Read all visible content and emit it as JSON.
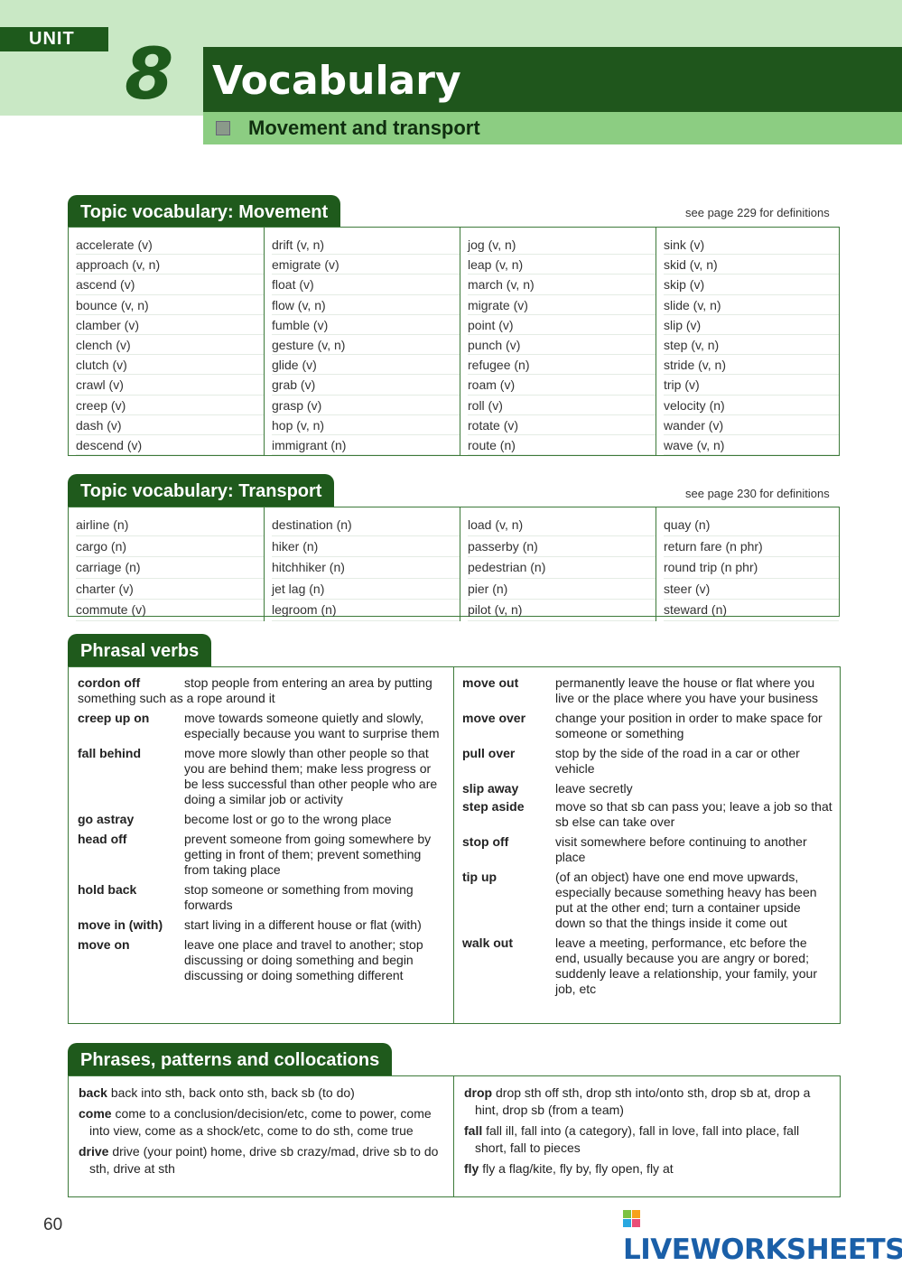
{
  "header": {
    "unit_label": "UNIT",
    "unit_number": "8",
    "title": "Vocabulary",
    "subtitle": "Movement and transport"
  },
  "movement": {
    "title": "Topic vocabulary: Movement",
    "note": "see page 229 for definitions",
    "columns": [
      [
        "accelerate (v)",
        "approach (v, n)",
        "ascend (v)",
        "bounce (v, n)",
        "clamber (v)",
        "clench (v)",
        "clutch (v)",
        "crawl (v)",
        "creep (v)",
        "dash (v)",
        "descend (v)"
      ],
      [
        "drift (v, n)",
        "emigrate (v)",
        "float (v)",
        "flow (v, n)",
        "fumble (v)",
        "gesture (v, n)",
        "glide (v)",
        "grab (v)",
        "grasp (v)",
        "hop (v, n)",
        "immigrant (n)"
      ],
      [
        "jog (v, n)",
        "leap (v, n)",
        "march (v, n)",
        "migrate (v)",
        "point (v)",
        "punch (v)",
        "refugee (n)",
        "roam (v)",
        "roll (v)",
        "rotate (v)",
        "route (n)"
      ],
      [
        "sink (v)",
        "skid (v, n)",
        "skip (v)",
        "slide (v, n)",
        "slip (v)",
        "step (v, n)",
        "stride (v, n)",
        "trip (v)",
        "velocity (n)",
        "wander (v)",
        "wave (v, n)"
      ]
    ]
  },
  "transport": {
    "title": "Topic vocabulary: Transport",
    "note": "see page 230 for definitions",
    "columns": [
      [
        "airline (n)",
        "cargo (n)",
        "carriage (n)",
        "charter (v)",
        "commute (v)"
      ],
      [
        "destination (n)",
        "hiker (n)",
        "hitchhiker (n)",
        "jet lag (n)",
        "legroom (n)"
      ],
      [
        "load (v, n)",
        "passerby (n)",
        "pedestrian (n)",
        "pier (n)",
        "pilot (v, n)"
      ],
      [
        "quay (n)",
        "return fare (n phr)",
        "round trip (n phr)",
        "steer (v)",
        "steward (n)"
      ]
    ]
  },
  "phrasal": {
    "title": "Phrasal verbs",
    "left": [
      {
        "term": "cordon off",
        "def": "stop people from entering an area by putting something such as a rope around it"
      },
      {
        "term": "creep up on",
        "def": "move towards someone quietly and slowly, especially because you want to surprise them"
      },
      {
        "term": "fall behind",
        "def": "move more slowly than other people so that you are behind them; make less progress or be less successful than other people who are doing a similar job or activity"
      },
      {
        "term": "go astray",
        "def": "become lost or go to the wrong place"
      },
      {
        "term": "head off",
        "def": "prevent someone from going somewhere by getting in front of them; prevent something from taking place"
      },
      {
        "term": "hold back",
        "def": "stop someone or something from moving forwards"
      },
      {
        "term": "move in (with)",
        "def": "start living in a different house or flat (with)"
      },
      {
        "term": "move on",
        "def": "leave one place and travel to another; stop discussing or doing something and begin discussing or doing something different"
      }
    ],
    "right": [
      {
        "term": "move out",
        "def": "permanently leave the house or flat where you live or the place where you have your business"
      },
      {
        "term": "move over",
        "def": "change your position in order to make space for someone or something"
      },
      {
        "term": "pull over",
        "def": "stop by the side of the road in a car or other vehicle"
      },
      {
        "term": "slip away",
        "def": "leave secretly"
      },
      {
        "term": "step aside",
        "def": "move so that sb can pass you; leave a job so that sb else can take over"
      },
      {
        "term": "stop off",
        "def": "visit somewhere before continuing to another place"
      },
      {
        "term": "tip up",
        "def": "(of an object) have one end move upwards, especially because something heavy has been put at the other end; turn a container upside down so that the things inside it come out"
      },
      {
        "term": "walk out",
        "def": "leave a meeting, performance, etc before the end, usually because you are angry or bored; suddenly leave a relationship, your family, your job, etc"
      }
    ]
  },
  "phrases": {
    "title": "Phrases, patterns and collocations",
    "left": [
      {
        "term": "back",
        "def": "back into sth, back onto sth, back sb (to do)"
      },
      {
        "term": "come",
        "def": "come to a conclusion/decision/etc, come to power, come into view, come as a shock/etc, come to do sth, come true"
      },
      {
        "term": "drive",
        "def": "drive (your point) home, drive sb crazy/mad, drive sb to do sth, drive at sth"
      }
    ],
    "right": [
      {
        "term": "drop",
        "def": "drop sth off sth, drop sth into/onto sth, drop sb at, drop a hint, drop sb (from a team)"
      },
      {
        "term": "fall",
        "def": "fall ill, fall into (a category), fall in love, fall into place, fall short, fall to pieces"
      },
      {
        "term": "fly",
        "def": "fly a flag/kite, fly by, fly open, fly at"
      }
    ]
  },
  "footer": {
    "page_number": "60",
    "logo_text": "LIVEWORKSHEETS"
  },
  "colors": {
    "dark_green": "#1f5a1c",
    "light_green": "#8ccd82",
    "band_green": "#c9e8c5"
  }
}
